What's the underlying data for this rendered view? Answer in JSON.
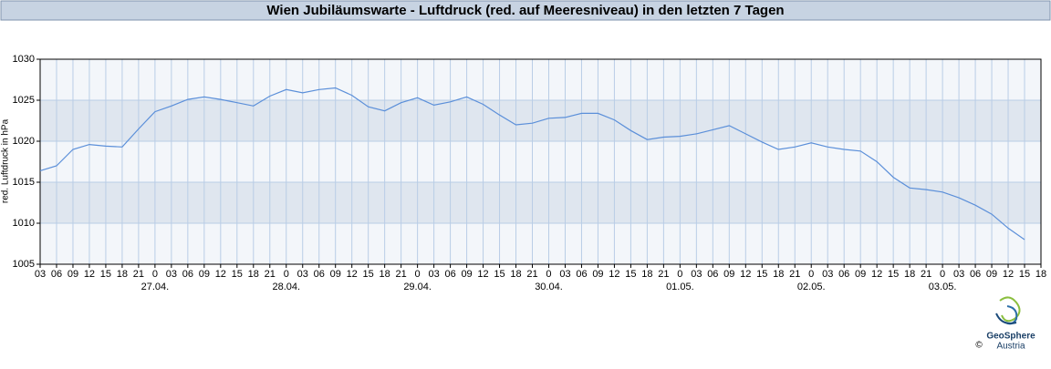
{
  "chart_data": {
    "type": "line",
    "title": "Wien Jubiläumswarte - Luftdruck (red. auf Meeresniveau) in den letzten 7 Tagen",
    "y_label": "red. Luftdruck in hPa",
    "x": [
      3,
      6,
      9,
      12,
      15,
      18,
      21,
      24,
      27,
      30,
      33,
      36,
      39,
      42,
      45,
      48,
      51,
      54,
      57,
      60,
      63,
      66,
      69,
      72,
      75,
      78,
      81,
      84,
      87,
      90,
      93,
      96,
      99,
      102,
      105,
      108,
      111,
      114,
      117,
      120,
      123,
      126,
      129,
      132,
      135,
      138,
      141,
      144,
      147,
      150,
      153,
      156,
      159,
      162,
      165,
      168,
      171,
      174,
      177,
      180,
      183
    ],
    "series": [
      {
        "name": "Luftdruck",
        "color": "#5b8fd9",
        "values": [
          1016.4,
          1017.0,
          1019.0,
          1019.6,
          1019.4,
          1019.3,
          1021.5,
          1023.6,
          1024.3,
          1025.1,
          1025.4,
          1025.1,
          1024.7,
          1024.3,
          1025.5,
          1026.3,
          1025.9,
          1026.3,
          1026.5,
          1025.6,
          1024.2,
          1023.7,
          1024.7,
          1025.3,
          1024.4,
          1024.8,
          1025.4,
          1024.5,
          1023.2,
          1022.0,
          1022.2,
          1022.8,
          1022.9,
          1023.4,
          1023.4,
          1022.6,
          1021.3,
          1020.2,
          1020.5,
          1020.6,
          1020.9,
          1021.4,
          1021.9,
          1020.9,
          1019.9,
          1019.0,
          1019.3,
          1019.8,
          1019.3,
          1019.0,
          1018.8,
          1017.5,
          1015.6,
          1014.3,
          1014.1,
          1013.8,
          1013.1,
          1012.2,
          1011.1,
          1009.4,
          1008.0
        ]
      }
    ],
    "xlim": [
      3,
      186
    ],
    "xticks": [
      {
        "value": 3,
        "label": "03"
      },
      {
        "value": 6,
        "label": "06"
      },
      {
        "value": 9,
        "label": "09"
      },
      12,
      15,
      18,
      21,
      {
        "value": 24,
        "label": "0"
      },
      {
        "value": 27,
        "label": "03"
      },
      {
        "value": 30,
        "label": "06"
      },
      {
        "value": 33,
        "label": "09"
      },
      {
        "value": 36,
        "label": "12"
      },
      {
        "value": 39,
        "label": "15"
      },
      {
        "value": 42,
        "label": "18"
      },
      {
        "value": 45,
        "label": "21"
      },
      {
        "value": 48,
        "label": "0"
      },
      {
        "value": 51,
        "label": "03"
      },
      {
        "value": 54,
        "label": "06"
      },
      {
        "value": 57,
        "label": "09"
      },
      {
        "value": 60,
        "label": "12"
      },
      {
        "value": 63,
        "label": "15"
      },
      {
        "value": 66,
        "label": "18"
      },
      {
        "value": 69,
        "label": "21"
      },
      {
        "value": 72,
        "label": "0"
      },
      {
        "value": 75,
        "label": "03"
      },
      {
        "value": 78,
        "label": "06"
      },
      {
        "value": 81,
        "label": "09"
      },
      {
        "value": 84,
        "label": "12"
      },
      {
        "value": 87,
        "label": "15"
      },
      {
        "value": 90,
        "label": "18"
      },
      {
        "value": 93,
        "label": "21"
      },
      {
        "value": 96,
        "label": "0"
      },
      {
        "value": 99,
        "label": "03"
      },
      {
        "value": 102,
        "label": "06"
      },
      {
        "value": 105,
        "label": "09"
      },
      {
        "value": 108,
        "label": "12"
      },
      {
        "value": 111,
        "label": "15"
      },
      {
        "value": 114,
        "label": "18"
      },
      {
        "value": 117,
        "label": "21"
      },
      {
        "value": 120,
        "label": "0"
      },
      {
        "value": 123,
        "label": "03"
      },
      {
        "value": 126,
        "label": "06"
      },
      {
        "value": 129,
        "label": "09"
      },
      {
        "value": 132,
        "label": "12"
      },
      {
        "value": 135,
        "label": "15"
      },
      {
        "value": 138,
        "label": "18"
      },
      {
        "value": 141,
        "label": "21"
      },
      {
        "value": 144,
        "label": "0"
      },
      {
        "value": 147,
        "label": "03"
      },
      {
        "value": 150,
        "label": "06"
      },
      {
        "value": 153,
        "label": "09"
      },
      {
        "value": 156,
        "label": "12"
      },
      {
        "value": 159,
        "label": "15"
      },
      {
        "value": 162,
        "label": "18"
      },
      {
        "value": 165,
        "label": "21"
      },
      {
        "value": 168,
        "label": "0"
      },
      {
        "value": 171,
        "label": "03"
      },
      {
        "value": 174,
        "label": "06"
      },
      {
        "value": 177,
        "label": "09"
      },
      {
        "value": 180,
        "label": "12"
      },
      {
        "value": 183,
        "label": "15"
      },
      {
        "value": 186,
        "label": "18"
      }
    ],
    "date_labels": [
      {
        "value": 24,
        "label": "27.04."
      },
      {
        "value": 48,
        "label": "28.04."
      },
      {
        "value": 72,
        "label": "29.04."
      },
      {
        "value": 96,
        "label": "30.04."
      },
      {
        "value": 120,
        "label": "01.05."
      },
      {
        "value": 144,
        "label": "02.05."
      },
      {
        "value": 168,
        "label": "03.05."
      }
    ],
    "ylim": [
      1005,
      1030
    ],
    "yticks": [
      1005,
      1010,
      1015,
      1020,
      1025,
      1030
    ],
    "grid": true,
    "logo": {
      "name": "GeoSphere",
      "sub": "Austria",
      "copyright": "©"
    }
  }
}
